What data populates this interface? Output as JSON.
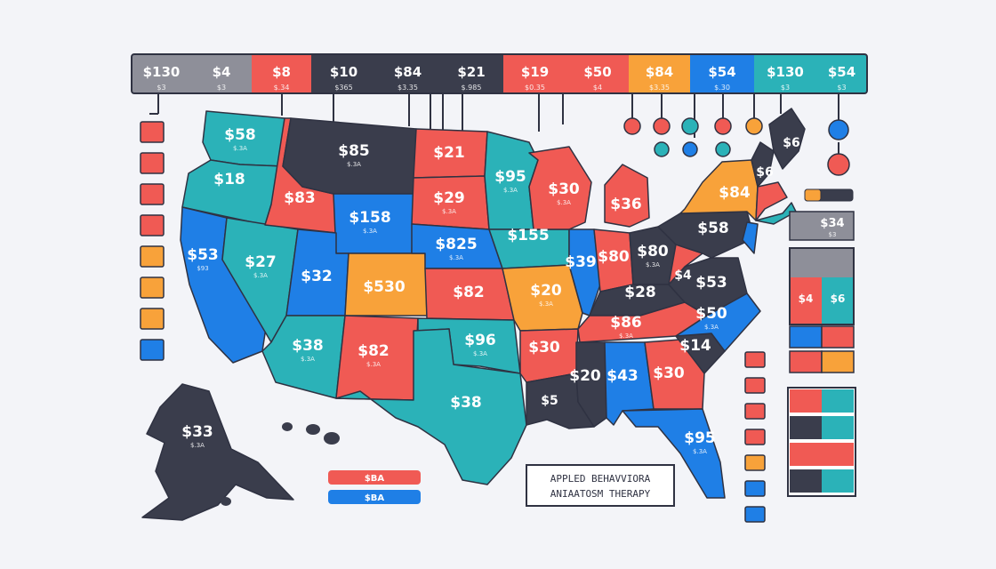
{
  "colors": {
    "gray": "#8e8f99",
    "navy": "#3a3d4c",
    "red": "#f05a54",
    "orange": "#f8a23a",
    "blue": "#1f7fe6",
    "teal": "#2bb2b8",
    "bg": "#f3f4f8",
    "stroke": "#2f3242"
  },
  "top_bar": [
    {
      "price": "$130",
      "sub": "$3",
      "color": "gray"
    },
    {
      "price": "$4",
      "sub": "$3",
      "color": "gray"
    },
    {
      "price": "$8",
      "sub": "$.34",
      "color": "red"
    },
    {
      "price": "$10",
      "sub": "$365",
      "color": "navy"
    },
    {
      "price": "$84",
      "sub": "$3.35",
      "color": "navy"
    },
    {
      "price": "$21",
      "sub": "$.985",
      "color": "navy"
    },
    {
      "price": "$19",
      "sub": "$0.35",
      "color": "red"
    },
    {
      "price": "$50",
      "sub": "$4",
      "color": "red"
    },
    {
      "price": "$84",
      "sub": "$3.35",
      "color": "orange"
    },
    {
      "price": "$54",
      "sub": "$.30",
      "color": "blue"
    },
    {
      "price": "$130",
      "sub": "$3",
      "color": "teal"
    },
    {
      "price": "$54",
      "sub": "$3",
      "color": "teal"
    }
  ],
  "states": [
    {
      "id": "wa",
      "price": "$58",
      "sub": "$.3A",
      "color": "teal"
    },
    {
      "id": "or",
      "price": "$18",
      "sub": "",
      "color": "teal"
    },
    {
      "id": "ca",
      "price": "$53",
      "sub": "$93",
      "color": "blue"
    },
    {
      "id": "nv",
      "price": "$27",
      "sub": "$.3A",
      "color": "teal"
    },
    {
      "id": "id",
      "price": "$83",
      "sub": "",
      "color": "red"
    },
    {
      "id": "mt",
      "price": "$85",
      "sub": "$.3A",
      "color": "navy"
    },
    {
      "id": "wy",
      "price": "$158",
      "sub": "$.3A",
      "color": "blue"
    },
    {
      "id": "ut",
      "price": "$32",
      "sub": "",
      "color": "blue"
    },
    {
      "id": "az",
      "price": "$38",
      "sub": "$.3A",
      "color": "teal"
    },
    {
      "id": "co",
      "price": "$530",
      "sub": "",
      "color": "orange"
    },
    {
      "id": "nm",
      "price": "$82",
      "sub": "$.3A",
      "color": "red"
    },
    {
      "id": "nd",
      "price": "$21",
      "sub": "",
      "color": "red"
    },
    {
      "id": "sd",
      "price": "$29",
      "sub": "$.3A",
      "color": "red"
    },
    {
      "id": "ne",
      "price": "$825",
      "sub": "$.3A",
      "color": "blue"
    },
    {
      "id": "ks",
      "price": "$82",
      "sub": "",
      "color": "red"
    },
    {
      "id": "ok",
      "price": "$96",
      "sub": "$.3A",
      "color": "teal"
    },
    {
      "id": "tx",
      "price": "$38",
      "sub": "",
      "color": "teal"
    },
    {
      "id": "mn",
      "price": "$95",
      "sub": "$.3A",
      "color": "teal"
    },
    {
      "id": "ia",
      "price": "$155",
      "sub": "",
      "color": "teal"
    },
    {
      "id": "mo",
      "price": "$20",
      "sub": "$.3A",
      "color": "orange"
    },
    {
      "id": "ar",
      "price": "$30",
      "sub": "",
      "color": "red"
    },
    {
      "id": "la",
      "price": "$5",
      "sub": "",
      "color": "navy"
    },
    {
      "id": "wi",
      "price": "$30",
      "sub": "$.3A",
      "color": "red"
    },
    {
      "id": "il",
      "price": "$39",
      "sub": "",
      "color": "blue"
    },
    {
      "id": "mi",
      "price": "$36",
      "sub": "",
      "color": "red"
    },
    {
      "id": "in",
      "price": "$80",
      "sub": "",
      "color": "red"
    },
    {
      "id": "oh",
      "price": "$80",
      "sub": "$.3A",
      "color": "navy"
    },
    {
      "id": "ky",
      "price": "$28",
      "sub": "",
      "color": "navy"
    },
    {
      "id": "tn",
      "price": "$86",
      "sub": "$.3A",
      "color": "red"
    },
    {
      "id": "ms",
      "price": "$20",
      "sub": "",
      "color": "navy"
    },
    {
      "id": "al",
      "price": "$43",
      "sub": "",
      "color": "blue"
    },
    {
      "id": "ga",
      "price": "$30",
      "sub": "",
      "color": "red"
    },
    {
      "id": "fl",
      "price": "$95",
      "sub": "$.3A",
      "color": "blue"
    },
    {
      "id": "sc",
      "price": "$14",
      "sub": "",
      "color": "navy"
    },
    {
      "id": "nc",
      "price": "$50",
      "sub": "$.3A",
      "color": "blue"
    },
    {
      "id": "va",
      "price": "$53",
      "sub": "",
      "color": "navy"
    },
    {
      "id": "wv",
      "price": "$4",
      "sub": "",
      "color": "red"
    },
    {
      "id": "pa",
      "price": "$58",
      "sub": "",
      "color": "navy"
    },
    {
      "id": "ny",
      "price": "$84",
      "sub": "",
      "color": "orange"
    },
    {
      "id": "vt",
      "price": "$6",
      "sub": "",
      "color": "navy"
    },
    {
      "id": "me",
      "price": "$6",
      "sub": "",
      "color": "navy"
    },
    {
      "id": "ak",
      "price": "$33",
      "sub": "$.3A",
      "color": "navy"
    }
  ],
  "left_legend": [
    "red",
    "red",
    "red",
    "red",
    "orange",
    "orange",
    "orange",
    "blue"
  ],
  "bubbles": [
    {
      "top": "red",
      "bottom": null
    },
    {
      "top": "red",
      "bottom": "teal"
    },
    {
      "top": "teal",
      "bottom": "blue"
    },
    {
      "top": "red",
      "bottom": "teal"
    },
    {
      "top": "orange",
      "bottom": null
    },
    {
      "top": "blue",
      "bottom": "red"
    }
  ],
  "right_panel": {
    "header_price": "$34",
    "header_sub": "$3",
    "cell_price_1": "$4",
    "cell_price_2": "$6"
  },
  "right_small_squares": [
    "red",
    "red",
    "red",
    "red",
    "orange",
    "blue",
    "blue"
  ],
  "right_pairs": [
    [
      "red",
      "teal"
    ],
    [
      "navy",
      "teal"
    ],
    [
      "red",
      "red"
    ],
    [
      "navy",
      "teal"
    ]
  ],
  "right_mid_pairs": [
    [
      "blue",
      "red"
    ],
    [
      "red",
      "orange"
    ]
  ],
  "bottom_pills": [
    {
      "label": "$BA",
      "color": "red"
    },
    {
      "label": "$BA",
      "color": "blue"
    }
  ],
  "title_box": {
    "line1": "APPLED BEHAVVIORA",
    "line2": "ANIAATOSM THERAPY"
  }
}
